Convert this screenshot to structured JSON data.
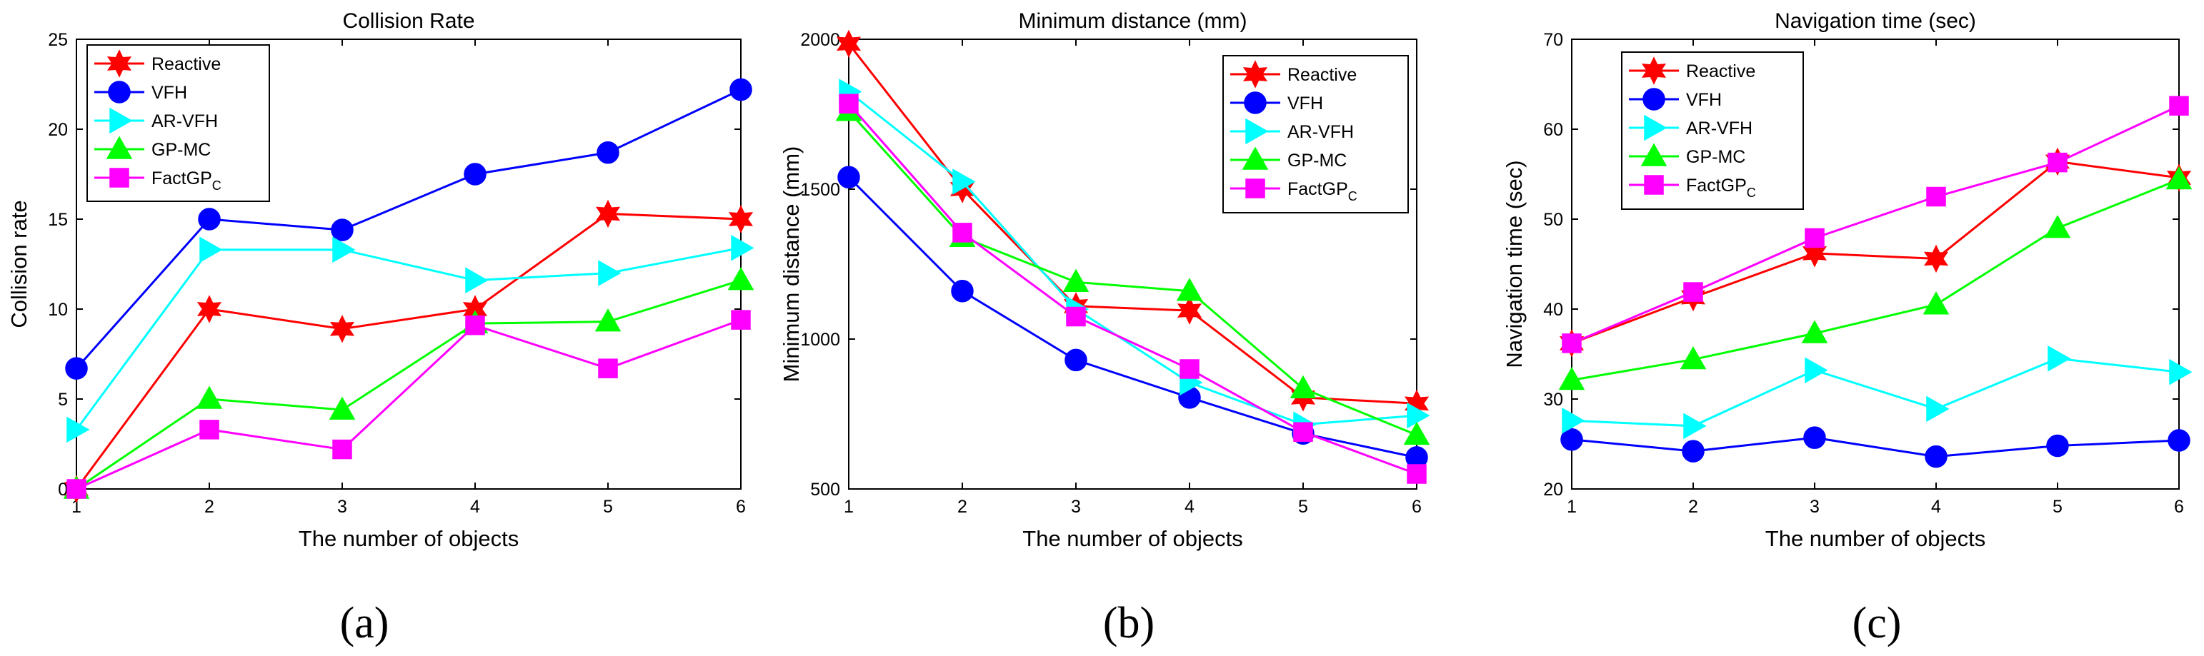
{
  "chart_data": [
    {
      "type": "line",
      "title": "Collision Rate",
      "xlabel": "The number of objects",
      "ylabel": "Collision rate",
      "caption": "(a)",
      "x": [
        1,
        2,
        3,
        4,
        5,
        6
      ],
      "xlim": [
        1,
        6
      ],
      "ylim": [
        0,
        25
      ],
      "yticks": [
        0,
        5,
        10,
        15,
        20,
        25
      ],
      "legend_position": "top-left",
      "series": [
        {
          "name": "Reactive",
          "base": "Reactive",
          "sub": "",
          "color": "#ff0000",
          "marker": "hexagram",
          "values": [
            0,
            10,
            8.9,
            10,
            15.3,
            15
          ]
        },
        {
          "name": "VFH",
          "base": "VFH",
          "sub": "",
          "color": "#0000ff",
          "marker": "circle",
          "values": [
            6.7,
            15,
            14.4,
            17.5,
            18.7,
            22.2
          ]
        },
        {
          "name": "AR-VFH",
          "base": "AR-VFH",
          "sub": "",
          "color": "#00ffff",
          "marker": "triangle-right",
          "values": [
            3.3,
            13.3,
            13.3,
            11.6,
            12,
            13.4
          ]
        },
        {
          "name": "GP-MC",
          "base": "GP-MC",
          "sub": "",
          "color": "#00ff00",
          "marker": "triangle-up",
          "values": [
            0,
            5,
            4.4,
            9.2,
            9.3,
            11.6
          ]
        },
        {
          "name": "FactGP_C",
          "base": "FactGP",
          "sub": "C",
          "color": "#ff00ff",
          "marker": "square",
          "values": [
            0,
            3.3,
            2.2,
            9.1,
            6.7,
            9.4
          ]
        }
      ]
    },
    {
      "type": "line",
      "title": "Minimum distance (mm)",
      "xlabel": "The number of objects",
      "ylabel": "Minimum distance (mm)",
      "caption": "(b)",
      "x": [
        1,
        2,
        3,
        4,
        5,
        6
      ],
      "xlim": [
        1,
        6
      ],
      "ylim": [
        500,
        2000
      ],
      "yticks": [
        500,
        1000,
        1500,
        2000
      ],
      "legend_position": "top-right",
      "series": [
        {
          "name": "Reactive",
          "base": "Reactive",
          "sub": "",
          "color": "#ff0000",
          "marker": "hexagram",
          "values": [
            1985,
            1500,
            1110,
            1095,
            805,
            785
          ]
        },
        {
          "name": "VFH",
          "base": "VFH",
          "sub": "",
          "color": "#0000ff",
          "marker": "circle",
          "values": [
            1540,
            1160,
            930,
            805,
            685,
            605
          ]
        },
        {
          "name": "AR-VFH",
          "base": "AR-VFH",
          "sub": "",
          "color": "#00ffff",
          "marker": "triangle-right",
          "values": [
            1825,
            1525,
            1100,
            855,
            715,
            745
          ]
        },
        {
          "name": "GP-MC",
          "base": "GP-MC",
          "sub": "",
          "color": "#00ff00",
          "marker": "triangle-up",
          "values": [
            1760,
            1340,
            1190,
            1160,
            835,
            680
          ]
        },
        {
          "name": "FactGP_C",
          "base": "FactGP",
          "sub": "C",
          "color": "#ff00ff",
          "marker": "square",
          "values": [
            1785,
            1355,
            1075,
            900,
            690,
            550
          ]
        }
      ]
    },
    {
      "type": "line",
      "title": "Navigation time (sec)",
      "xlabel": "The number of objects",
      "ylabel": "Navigation time (sec)",
      "caption": "(c)",
      "x": [
        1,
        2,
        3,
        4,
        5,
        6
      ],
      "xlim": [
        1,
        6
      ],
      "ylim": [
        20,
        70
      ],
      "yticks": [
        20,
        30,
        40,
        50,
        60,
        70
      ],
      "legend_position": "top-left",
      "series": [
        {
          "name": "Reactive",
          "base": "Reactive",
          "sub": "",
          "color": "#ff0000",
          "marker": "hexagram",
          "values": [
            36.2,
            41.3,
            46.2,
            45.6,
            56.4,
            54.6
          ]
        },
        {
          "name": "VFH",
          "base": "VFH",
          "sub": "",
          "color": "#0000ff",
          "marker": "circle",
          "values": [
            25.5,
            24.2,
            25.7,
            23.6,
            24.8,
            25.4
          ]
        },
        {
          "name": "AR-VFH",
          "base": "AR-VFH",
          "sub": "",
          "color": "#00ffff",
          "marker": "triangle-right",
          "values": [
            27.6,
            27,
            33.2,
            28.9,
            34.5,
            33
          ]
        },
        {
          "name": "GP-MC",
          "base": "GP-MC",
          "sub": "",
          "color": "#00ff00",
          "marker": "triangle-up",
          "values": [
            32.1,
            34.4,
            37.3,
            40.5,
            49,
            54.4
          ]
        },
        {
          "name": "FactGP_C",
          "base": "FactGP",
          "sub": "C",
          "color": "#ff00ff",
          "marker": "square",
          "values": [
            36.2,
            41.9,
            47.9,
            52.5,
            56.3,
            62.6
          ]
        }
      ]
    }
  ]
}
